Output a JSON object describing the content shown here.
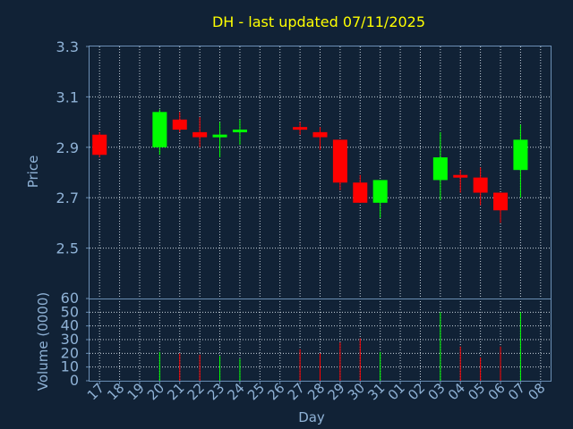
{
  "chart_data": {
    "type": "candlestick",
    "title": "DH - last updated 07/11/2025",
    "xlabel": "Day",
    "ylabel_price": "Price",
    "ylabel_volume": "Volume (0000)",
    "price_ylim": [
      2.3,
      3.3
    ],
    "price_yticks": [
      "3.3",
      "3.1",
      "2.9",
      "2.7",
      "2.5"
    ],
    "volume_ylim": [
      0,
      60
    ],
    "volume_yticks": [
      "60",
      "50",
      "40",
      "30",
      "20",
      "10",
      "0"
    ],
    "grid": true,
    "x_labels": [
      "17",
      "18",
      "19",
      "20",
      "21",
      "22",
      "23",
      "24",
      "25",
      "26",
      "27",
      "28",
      "29",
      "30",
      "31",
      "01",
      "02",
      "03",
      "04",
      "05",
      "06",
      "07",
      "08"
    ],
    "candles": [
      {
        "day": "17",
        "open": 2.95,
        "close": 2.87,
        "high": 2.96,
        "low": 2.86,
        "volume": 0
      },
      {
        "day": "20",
        "open": 2.9,
        "close": 3.04,
        "high": 3.05,
        "low": 2.87,
        "volume": 21
      },
      {
        "day": "21",
        "open": 3.01,
        "close": 2.97,
        "high": 3.04,
        "low": 2.96,
        "volume": 20
      },
      {
        "day": "22",
        "open": 2.96,
        "close": 2.94,
        "high": 3.02,
        "low": 2.9,
        "volume": 19
      },
      {
        "day": "23",
        "open": 2.94,
        "close": 2.95,
        "high": 3.0,
        "low": 2.86,
        "volume": 18
      },
      {
        "day": "24",
        "open": 2.96,
        "close": 2.97,
        "high": 3.01,
        "low": 2.91,
        "volume": 16
      },
      {
        "day": "27",
        "open": 2.98,
        "close": 2.97,
        "high": 3.0,
        "low": 2.95,
        "volume": 23
      },
      {
        "day": "28",
        "open": 2.96,
        "close": 2.94,
        "high": 2.98,
        "low": 2.89,
        "volume": 20
      },
      {
        "day": "29",
        "open": 2.93,
        "close": 2.76,
        "high": 2.93,
        "low": 2.73,
        "volume": 28
      },
      {
        "day": "30",
        "open": 2.76,
        "close": 2.68,
        "high": 2.79,
        "low": 2.68,
        "volume": 31
      },
      {
        "day": "31",
        "open": 2.68,
        "close": 2.77,
        "high": 2.77,
        "low": 2.62,
        "volume": 21
      },
      {
        "day": "03",
        "open": 2.77,
        "close": 2.86,
        "high": 2.96,
        "low": 2.69,
        "volume": 50
      },
      {
        "day": "04",
        "open": 2.79,
        "close": 2.78,
        "high": 2.81,
        "low": 2.72,
        "volume": 25
      },
      {
        "day": "05",
        "open": 2.78,
        "close": 2.72,
        "high": 2.82,
        "low": 2.67,
        "volume": 17
      },
      {
        "day": "06",
        "open": 2.72,
        "close": 2.65,
        "high": 2.72,
        "low": 2.6,
        "volume": 25
      },
      {
        "day": "07",
        "open": 2.81,
        "close": 2.93,
        "high": 2.99,
        "low": 2.7,
        "volume": 50
      }
    ],
    "colors": {
      "background": "#112236",
      "up": "#00ff00",
      "down": "#ff0000",
      "axis": "#6a8eb4",
      "grid": "#c8d2dc",
      "text": "#8fb2d6",
      "title": "#ffff00"
    }
  }
}
